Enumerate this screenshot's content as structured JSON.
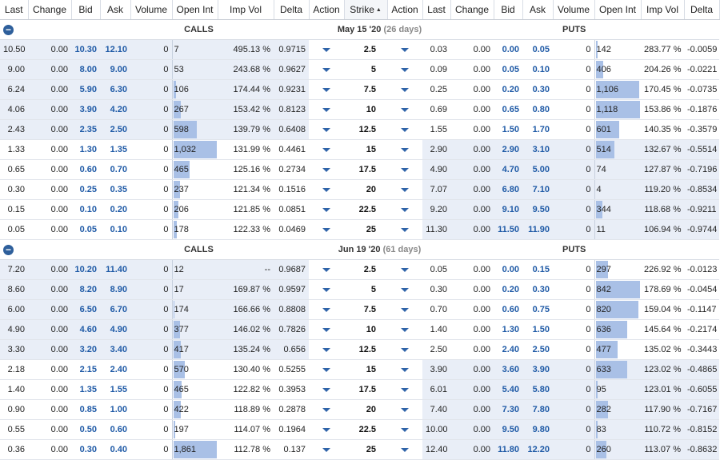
{
  "headers": [
    "Last",
    "Change",
    "Bid",
    "Ask",
    "Volume",
    "Open Int",
    "Imp Vol",
    "Delta",
    "Action",
    "Strike",
    "Action",
    "Last",
    "Change",
    "Bid",
    "Ask",
    "Volume",
    "Open Int",
    "Imp Vol",
    "Delta"
  ],
  "sorted_column_index": 9,
  "calls_label": "CALLS",
  "puts_label": "PUTS",
  "colors": {
    "itm_bg": "#e9eef7",
    "bar": "#a9c0e6",
    "accent_blue": "#1f5aa6"
  },
  "sections": [
    {
      "expiry": "May 15 '20",
      "days": "(26 days)",
      "rows": [
        {
          "c": [
            "10.50",
            "0.00",
            "10.30",
            "12.10",
            "0",
            "7",
            "495.13 %",
            "0.9715"
          ],
          "strike": "2.5",
          "p": [
            "0.03",
            "0.00",
            "0.00",
            "0.05",
            "0",
            "142",
            "283.77 %",
            "-0.0059"
          ],
          "c_itm": true,
          "p_itm": false,
          "c_oi": 0.0,
          "p_oi": 0.07
        },
        {
          "c": [
            "9.00",
            "0.00",
            "8.00",
            "9.00",
            "0",
            "53",
            "243.68 %",
            "0.9627"
          ],
          "strike": "5",
          "p": [
            "0.09",
            "0.00",
            "0.05",
            "0.10",
            "0",
            "406",
            "204.26 %",
            "-0.0221"
          ],
          "c_itm": true,
          "p_itm": false,
          "c_oi": 0.03,
          "p_oi": 0.2
        },
        {
          "c": [
            "6.24",
            "0.00",
            "5.90",
            "6.30",
            "0",
            "106",
            "174.44 %",
            "0.9231"
          ],
          "strike": "7.5",
          "p": [
            "0.25",
            "0.00",
            "0.20",
            "0.30",
            "0",
            "1,106",
            "170.45 %",
            "-0.0735"
          ],
          "c_itm": true,
          "p_itm": false,
          "c_oi": 0.1,
          "p_oi": 0.98
        },
        {
          "c": [
            "4.06",
            "0.00",
            "3.90",
            "4.20",
            "0",
            "267",
            "153.42 %",
            "0.8123"
          ],
          "strike": "10",
          "p": [
            "0.69",
            "0.00",
            "0.65",
            "0.80",
            "0",
            "1,118",
            "153.86 %",
            "-0.1876"
          ],
          "c_itm": true,
          "p_itm": false,
          "c_oi": 0.2,
          "p_oi": 1.0
        },
        {
          "c": [
            "2.43",
            "0.00",
            "2.35",
            "2.50",
            "0",
            "598",
            "139.79 %",
            "0.6408"
          ],
          "strike": "12.5",
          "p": [
            "1.55",
            "0.00",
            "1.50",
            "1.70",
            "0",
            "601",
            "140.35 %",
            "-0.3579"
          ],
          "c_itm": true,
          "p_itm": false,
          "c_oi": 0.55,
          "p_oi": 0.55
        },
        {
          "c": [
            "1.33",
            "0.00",
            "1.30",
            "1.35",
            "0",
            "1,032",
            "131.99 %",
            "0.4461"
          ],
          "strike": "15",
          "p": [
            "2.90",
            "0.00",
            "2.90",
            "3.10",
            "0",
            "514",
            "132.67 %",
            "-0.5514"
          ],
          "c_itm": false,
          "p_itm": true,
          "c_oi": 1.0,
          "p_oi": 0.45
        },
        {
          "c": [
            "0.65",
            "0.00",
            "0.60",
            "0.70",
            "0",
            "465",
            "125.16 %",
            "0.2734"
          ],
          "strike": "17.5",
          "p": [
            "4.90",
            "0.00",
            "4.70",
            "5.00",
            "0",
            "74",
            "127.87 %",
            "-0.7196"
          ],
          "c_itm": false,
          "p_itm": true,
          "c_oi": 0.4,
          "p_oi": 0.03
        },
        {
          "c": [
            "0.30",
            "0.00",
            "0.25",
            "0.35",
            "0",
            "237",
            "121.34 %",
            "0.1516"
          ],
          "strike": "20",
          "p": [
            "7.07",
            "0.00",
            "6.80",
            "7.10",
            "0",
            "4",
            "119.20 %",
            "-0.8534"
          ],
          "c_itm": false,
          "p_itm": true,
          "c_oi": 0.18,
          "p_oi": 0.0
        },
        {
          "c": [
            "0.15",
            "0.00",
            "0.10",
            "0.20",
            "0",
            "206",
            "121.85 %",
            "0.0851"
          ],
          "strike": "22.5",
          "p": [
            "9.20",
            "0.00",
            "9.10",
            "9.50",
            "0",
            "344",
            "118.68 %",
            "-0.9211"
          ],
          "c_itm": false,
          "p_itm": true,
          "c_oi": 0.15,
          "p_oi": 0.18
        },
        {
          "c": [
            "0.05",
            "0.00",
            "0.05",
            "0.10",
            "0",
            "178",
            "122.33 %",
            "0.0469"
          ],
          "strike": "25",
          "p": [
            "11.30",
            "0.00",
            "11.50",
            "11.90",
            "0",
            "11",
            "106.94 %",
            "-0.9744"
          ],
          "c_itm": false,
          "p_itm": true,
          "c_oi": 0.12,
          "p_oi": 0.0
        }
      ]
    },
    {
      "expiry": "Jun 19 '20",
      "days": "(61 days)",
      "rows": [
        {
          "c": [
            "7.20",
            "0.00",
            "10.20",
            "11.40",
            "0",
            "12",
            "--",
            "0.9687"
          ],
          "strike": "2.5",
          "p": [
            "0.05",
            "0.00",
            "0.00",
            "0.15",
            "0",
            "297",
            "226.92 %",
            "-0.0123"
          ],
          "c_itm": true,
          "p_itm": false,
          "c_oi": 0.0,
          "p_oi": 0.3
        },
        {
          "c": [
            "8.60",
            "0.00",
            "8.20",
            "8.90",
            "0",
            "17",
            "169.87 %",
            "0.9597"
          ],
          "strike": "5",
          "p": [
            "0.30",
            "0.00",
            "0.20",
            "0.30",
            "0",
            "842",
            "178.69 %",
            "-0.0454"
          ],
          "c_itm": true,
          "p_itm": false,
          "c_oi": 0.0,
          "p_oi": 1.0
        },
        {
          "c": [
            "6.00",
            "0.00",
            "6.50",
            "6.70",
            "0",
            "174",
            "166.66 %",
            "0.8808"
          ],
          "strike": "7.5",
          "p": [
            "0.70",
            "0.00",
            "0.60",
            "0.75",
            "0",
            "820",
            "159.04 %",
            "-0.1147"
          ],
          "c_itm": true,
          "p_itm": false,
          "c_oi": 0.07,
          "p_oi": 0.97
        },
        {
          "c": [
            "4.90",
            "0.00",
            "4.60",
            "4.90",
            "0",
            "377",
            "146.02 %",
            "0.7826"
          ],
          "strike": "10",
          "p": [
            "1.40",
            "0.00",
            "1.30",
            "1.50",
            "0",
            "636",
            "145.64 %",
            "-0.2174"
          ],
          "c_itm": true,
          "p_itm": false,
          "c_oi": 0.18,
          "p_oi": 0.72
        },
        {
          "c": [
            "3.30",
            "0.00",
            "3.20",
            "3.40",
            "0",
            "417",
            "135.24 %",
            "0.656"
          ],
          "strike": "12.5",
          "p": [
            "2.50",
            "0.00",
            "2.40",
            "2.50",
            "0",
            "477",
            "135.02 %",
            "-0.3443"
          ],
          "c_itm": true,
          "p_itm": false,
          "c_oi": 0.2,
          "p_oi": 0.52
        },
        {
          "c": [
            "2.18",
            "0.00",
            "2.15",
            "2.40",
            "0",
            "570",
            "130.40 %",
            "0.5255"
          ],
          "strike": "15",
          "p": [
            "3.90",
            "0.00",
            "3.60",
            "3.90",
            "0",
            "633",
            "123.02 %",
            "-0.4865"
          ],
          "c_itm": false,
          "p_itm": true,
          "c_oi": 0.3,
          "p_oi": 0.72
        },
        {
          "c": [
            "1.40",
            "0.00",
            "1.35",
            "1.55",
            "0",
            "465",
            "122.82 %",
            "0.3953"
          ],
          "strike": "17.5",
          "p": [
            "6.01",
            "0.00",
            "5.40",
            "5.80",
            "0",
            "95",
            "123.01 %",
            "-0.6055"
          ],
          "c_itm": false,
          "p_itm": true,
          "c_oi": 0.23,
          "p_oi": 0.08
        },
        {
          "c": [
            "0.90",
            "0.00",
            "0.85",
            "1.00",
            "0",
            "422",
            "118.89 %",
            "0.2878"
          ],
          "strike": "20",
          "p": [
            "7.40",
            "0.00",
            "7.30",
            "7.80",
            "0",
            "282",
            "117.90 %",
            "-0.7167"
          ],
          "c_itm": false,
          "p_itm": true,
          "c_oi": 0.2,
          "p_oi": 0.3
        },
        {
          "c": [
            "0.55",
            "0.00",
            "0.50",
            "0.60",
            "0",
            "197",
            "114.07 %",
            "0.1964"
          ],
          "strike": "22.5",
          "p": [
            "10.00",
            "0.00",
            "9.50",
            "9.80",
            "0",
            "83",
            "110.72 %",
            "-0.8152"
          ],
          "c_itm": false,
          "p_itm": true,
          "c_oi": 0.08,
          "p_oi": 0.07
        },
        {
          "c": [
            "0.36",
            "0.00",
            "0.30",
            "0.40",
            "0",
            "1,861",
            "112.78 %",
            "0.137"
          ],
          "strike": "25",
          "p": [
            "12.40",
            "0.00",
            "11.80",
            "12.20",
            "0",
            "260",
            "113.07 %",
            "-0.8632"
          ],
          "c_itm": false,
          "p_itm": true,
          "c_oi": 1.0,
          "p_oi": 0.27
        }
      ]
    }
  ]
}
